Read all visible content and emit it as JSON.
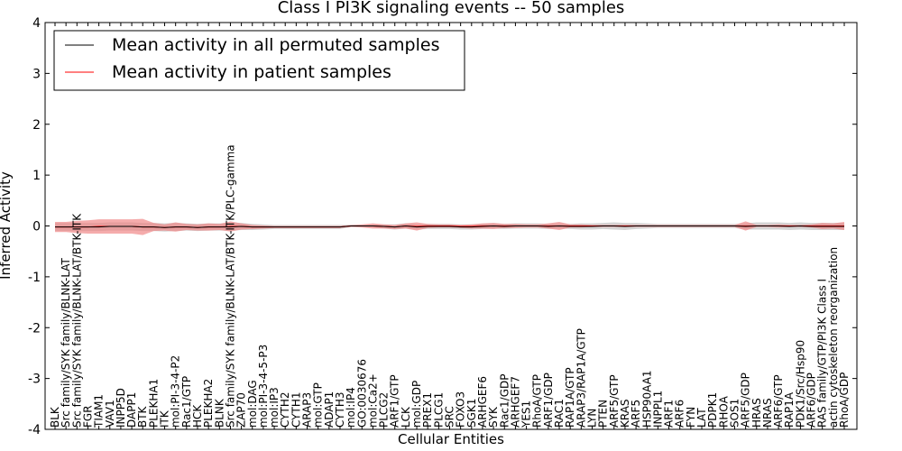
{
  "chart_data": {
    "type": "line",
    "title": "Class I PI3K signaling events -- 50 samples",
    "xlabel": "Cellular Entities",
    "ylabel": "Inferred Activity",
    "ylim": [
      -4,
      4
    ],
    "yticks": [
      "-4",
      "-3",
      "-2",
      "-1",
      "0",
      "1",
      "2",
      "3",
      "4"
    ],
    "ytick_values": [
      -4,
      -3,
      -2,
      -1,
      0,
      1,
      2,
      3,
      4
    ],
    "grid": false,
    "legend_placement": "top-left",
    "categories": [
      "BLK",
      "Src family/SYK family/BLNK-LAT",
      "Src family/SYK family/BLNK-LAT/BTK-ITK",
      "FGR",
      "TIAM1",
      "VAV1",
      "INPP5D",
      "DAPP1",
      "BTK",
      "PLEKHA1",
      "ITK",
      "mol:PI-3-4-P2",
      "Rac1/GTP",
      "HCK",
      "PLEKHA2",
      "BLNK",
      "Src family/SYK family/BLNK-LAT/BTK-ITK/PLC-gamma",
      "ZAP70",
      "mol:DAG",
      "mol:PI-3-4-5-P3",
      "mol:IP3",
      "CYTH2",
      "CYTH1",
      "ARAP3",
      "mol:GTP",
      "ADAP1",
      "CYTH3",
      "mol:IP4",
      "GO:0030676",
      "mol:Ca2+",
      "PLCG2",
      "ARF1/GTP",
      "LCK",
      "mol:GDP",
      "PREX1",
      "PLCG1",
      "SRC",
      "FOXO3",
      "SGK1",
      "ARHGEF6",
      "SYK",
      "Rac1/GDP",
      "ARHGEF7",
      "YES1",
      "RhoA/GTP",
      "ARF1/GDP",
      "RAC1",
      "RAP1A/GTP",
      "ARAP3/RAP1A/GTP",
      "LYN",
      "PTEN",
      "ARF5/GTP",
      "KRAS",
      "ARF5",
      "HSP90AA1",
      "INPPL1",
      "ARF1",
      "ARF6",
      "FYN",
      "LAT",
      "PDPK1",
      "RHOA",
      "SOS1",
      "ARF5/GDP",
      "HRAS",
      "NRAS",
      "ARF6/GTP",
      "RAP1A",
      "PDK1/Src/Hsp90",
      "ARF6/GDP",
      "RAS family/GTP/PI3K Class I",
      "actin cytoskeleton reorganization",
      "RhoA/GDP"
    ],
    "series": [
      {
        "name": "Mean activity in all permuted samples",
        "color": "#000000",
        "values": [
          -0.02,
          -0.02,
          -0.02,
          -0.02,
          -0.02,
          -0.01,
          -0.01,
          -0.01,
          -0.02,
          -0.02,
          -0.03,
          -0.02,
          -0.02,
          -0.03,
          -0.02,
          -0.02,
          -0.02,
          -0.01,
          -0.02,
          -0.02,
          -0.02,
          -0.02,
          -0.02,
          -0.02,
          -0.02,
          -0.02,
          -0.02,
          0,
          0,
          0,
          -0.01,
          -0.02,
          0,
          -0.02,
          -0.01,
          -0.01,
          -0.01,
          -0.02,
          -0.02,
          -0.01,
          0,
          -0.01,
          0,
          0,
          0,
          -0.01,
          0,
          -0.01,
          -0.01,
          -0.01,
          0,
          0,
          -0.01,
          0,
          0,
          0,
          0,
          0,
          0,
          0,
          0,
          0,
          0,
          -0.01,
          0,
          0,
          0,
          -0.01,
          0,
          -0.01,
          -0.01,
          -0.01,
          -0.01
        ],
        "band": [
          0.08,
          0.08,
          0.08,
          0.08,
          0.08,
          0.08,
          0.08,
          0.08,
          0.08,
          0.08,
          0.08,
          0.08,
          0.07,
          0.07,
          0.07,
          0.07,
          0.07,
          0.07,
          0.06,
          0.05,
          0.04,
          0.04,
          0.04,
          0.04,
          0.04,
          0.04,
          0.04,
          0.02,
          0.02,
          0.03,
          0.04,
          0.05,
          0.05,
          0.05,
          0.05,
          0.05,
          0.05,
          0.05,
          0.05,
          0.05,
          0.05,
          0.05,
          0.05,
          0.05,
          0.05,
          0.05,
          0.05,
          0.05,
          0.06,
          0.06,
          0.06,
          0.07,
          0.07,
          0.06,
          0.05,
          0.04,
          0.04,
          0.04,
          0.04,
          0.04,
          0.04,
          0.04,
          0.04,
          0.06,
          0.07,
          0.07,
          0.07,
          0.07,
          0.07,
          0.07,
          0.07,
          0.07,
          0.07
        ],
        "fill": "#cccccc"
      },
      {
        "name": "Mean activity in patient samples",
        "color": "#ff0000",
        "values": [
          -0.02,
          -0.02,
          -0.02,
          -0.02,
          -0.01,
          -0.01,
          -0.01,
          -0.01,
          -0.02,
          -0.02,
          -0.03,
          -0.02,
          -0.02,
          -0.03,
          -0.02,
          -0.02,
          -0.01,
          -0.01,
          -0.02,
          -0.02,
          -0.02,
          -0.02,
          -0.02,
          -0.02,
          -0.02,
          -0.02,
          -0.02,
          0,
          0,
          0,
          -0.01,
          -0.02,
          0,
          -0.01,
          0,
          0,
          0,
          -0.01,
          -0.01,
          0,
          0,
          0,
          0,
          0,
          0,
          0,
          0,
          0,
          0,
          0,
          0,
          0,
          0,
          0,
          0,
          0,
          0,
          0,
          0,
          0,
          0,
          0,
          0,
          0,
          0,
          0,
          0,
          0,
          0,
          0,
          0,
          0,
          0
        ],
        "band": [
          0.1,
          0.1,
          0.12,
          0.13,
          0.14,
          0.14,
          0.14,
          0.14,
          0.16,
          0.08,
          0.06,
          0.09,
          0.06,
          0.06,
          0.07,
          0.06,
          0.1,
          0.06,
          0.04,
          0.03,
          0.02,
          0.02,
          0.02,
          0.02,
          0.02,
          0.02,
          0.02,
          0.02,
          0.03,
          0.05,
          0.04,
          0.04,
          0.05,
          0.08,
          0.04,
          0.03,
          0.03,
          0.03,
          0.04,
          0.05,
          0.06,
          0.04,
          0.04,
          0.03,
          0.03,
          0.05,
          0.08,
          0.03,
          0.03,
          0.02,
          0.02,
          0.02,
          0.02,
          0.02,
          0.02,
          0.02,
          0.02,
          0.02,
          0.02,
          0.02,
          0.02,
          0.02,
          0.02,
          0.09,
          0.02,
          0.02,
          0.03,
          0.02,
          0.02,
          0.03,
          0.06,
          0.05,
          0.08
        ],
        "fill": "#f08080"
      }
    ]
  }
}
